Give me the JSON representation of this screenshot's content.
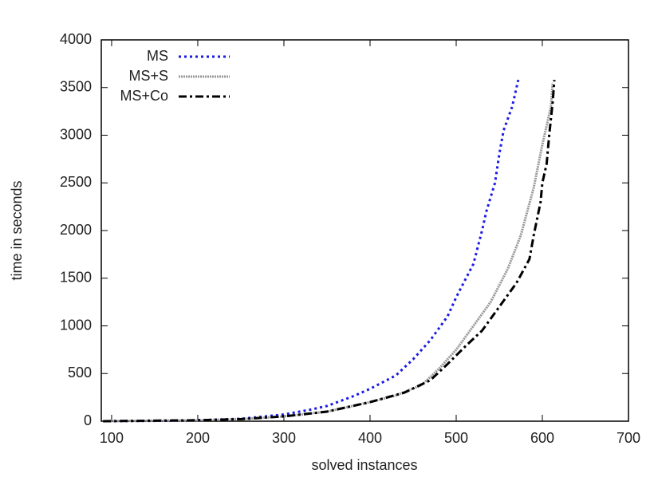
{
  "chart_data": {
    "type": "line",
    "xlabel": "solved instances",
    "ylabel": "time in seconds",
    "xlim": [
      88,
      700
    ],
    "ylim": [
      0,
      4000
    ],
    "xticks": [
      100,
      200,
      300,
      400,
      500,
      600,
      700
    ],
    "yticks": [
      0,
      500,
      1000,
      1500,
      2000,
      2500,
      3000,
      3500,
      4000
    ],
    "legend": "top-left",
    "series": [
      {
        "name": "MS",
        "color": "#1a1ae6",
        "x": [
          90,
          150,
          200,
          250,
          300,
          330,
          350,
          380,
          400,
          430,
          450,
          470,
          490,
          500,
          520,
          530,
          535,
          545,
          550,
          555,
          565,
          572
        ],
        "values": [
          0,
          3,
          10,
          25,
          70,
          120,
          160,
          260,
          340,
          480,
          650,
          850,
          1100,
          1300,
          1650,
          2000,
          2200,
          2500,
          2800,
          3050,
          3300,
          3580
        ]
      },
      {
        "name": "MS+S",
        "color": "#999999",
        "x": [
          90,
          200,
          250,
          300,
          350,
          400,
          430,
          460,
          480,
          500,
          520,
          540,
          560,
          575,
          590,
          600,
          610,
          612
        ],
        "values": [
          0,
          10,
          22,
          50,
          100,
          200,
          270,
          380,
          550,
          750,
          1000,
          1250,
          1600,
          1950,
          2450,
          2900,
          3300,
          3550
        ]
      },
      {
        "name": "MS+Co",
        "color": "#000000",
        "x": [
          90,
          200,
          250,
          300,
          350,
          400,
          440,
          470,
          490,
          510,
          530,
          550,
          570,
          585,
          590,
          598,
          600,
          605,
          608,
          612,
          614
        ],
        "values": [
          0,
          10,
          22,
          50,
          100,
          200,
          300,
          430,
          600,
          780,
          950,
          1200,
          1450,
          1700,
          1950,
          2300,
          2500,
          2700,
          3000,
          3350,
          3580
        ]
      }
    ]
  }
}
